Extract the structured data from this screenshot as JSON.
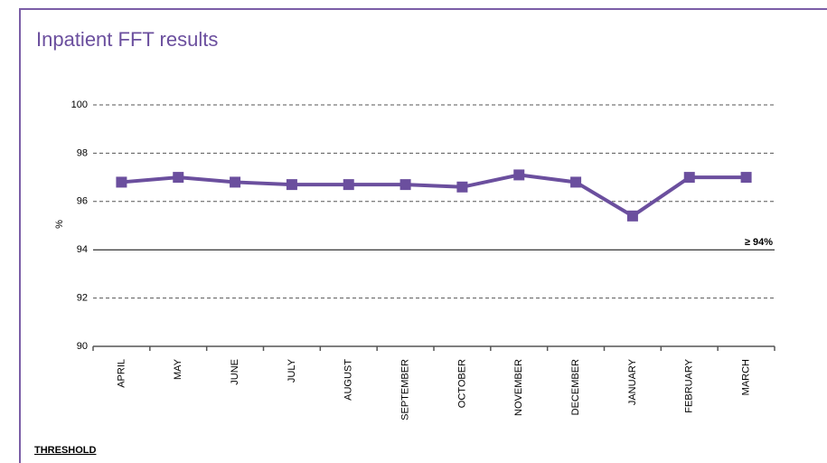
{
  "chart_data": {
    "type": "line",
    "title": "Inpatient FFT results",
    "y_label": "%",
    "categories": [
      "APRIL",
      "MAY",
      "JUNE",
      "JULY",
      "AUGUST",
      "SEPTEMBER",
      "OCTOBER",
      "NOVEMBER",
      "DECEMBER",
      "JANUARY",
      "FEBRUARY",
      "MARCH"
    ],
    "series": [
      {
        "name": "Inpatient FFT",
        "color": "#6b4f9e",
        "values": [
          96.8,
          97.0,
          96.8,
          96.7,
          96.7,
          96.7,
          96.6,
          97.1,
          96.8,
          95.4,
          97.0,
          97.0
        ]
      }
    ],
    "ylim": [
      90,
      100
    ],
    "yticks": [
      90,
      92,
      94,
      96,
      98,
      100
    ],
    "grid": true,
    "threshold": {
      "value": 94,
      "label": "≥ 94%"
    },
    "footer": "THRESHOLD"
  }
}
